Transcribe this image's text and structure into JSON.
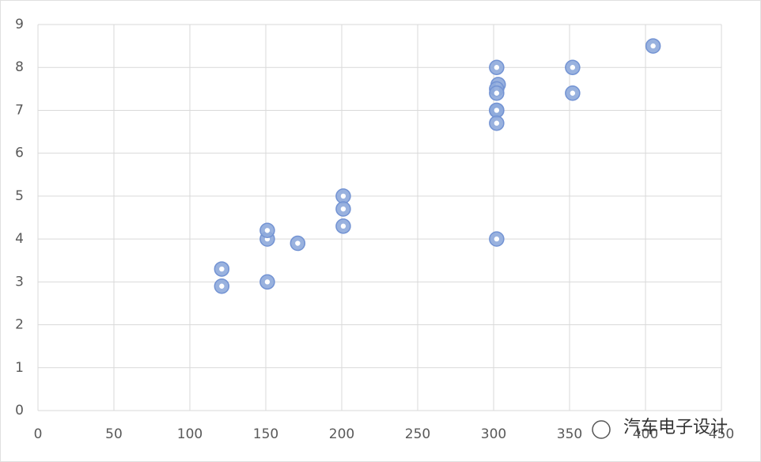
{
  "chart_data": {
    "type": "scatter",
    "x": [
      121,
      121,
      151,
      151,
      151,
      171,
      201,
      201,
      201,
      302,
      303,
      302,
      302,
      302,
      302,
      302,
      302,
      352,
      352,
      405
    ],
    "values": [
      3.3,
      2.9,
      3.0,
      4.0,
      4.2,
      3.9,
      5.0,
      4.7,
      4.3,
      8.0,
      7.6,
      7.5,
      7.4,
      7.0,
      7.0,
      6.7,
      4.0,
      8.0,
      7.4,
      8.5
    ],
    "color": "#8eaadb",
    "xlim": [
      0,
      450
    ],
    "xticks": [
      0,
      50,
      100,
      150,
      200,
      250,
      300,
      350,
      400,
      450
    ],
    "ylim": [
      0,
      9
    ],
    "yticks": [
      0,
      1,
      2,
      3,
      4,
      5,
      6,
      7,
      8,
      9
    ],
    "grid": true,
    "watermark": "汽车电子设计"
  }
}
